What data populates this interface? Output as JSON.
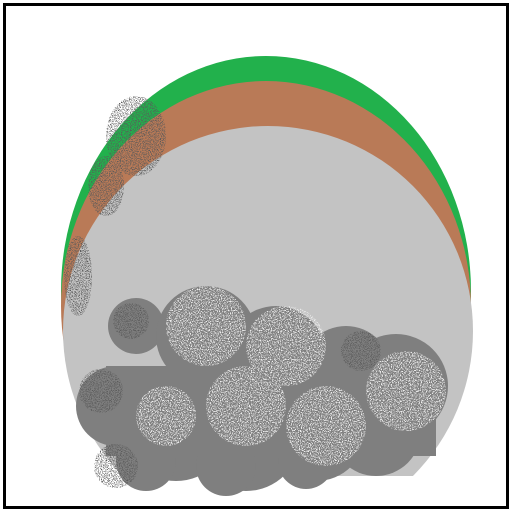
{
  "canvas": {
    "background": "#ffffff",
    "border_color": "#000000"
  },
  "colors": {
    "grass": "#22b14c",
    "soil": "#b97a57",
    "stone": "#c3c3c3",
    "cloud": "#7f7f7f",
    "cloud_speckle_light": "#c8c8c8",
    "cloud_speckle_dark": "#222222"
  },
  "scene": {
    "layers": [
      "grass-layer",
      "soil-layer",
      "stone-core",
      "smoke-cloud"
    ]
  }
}
